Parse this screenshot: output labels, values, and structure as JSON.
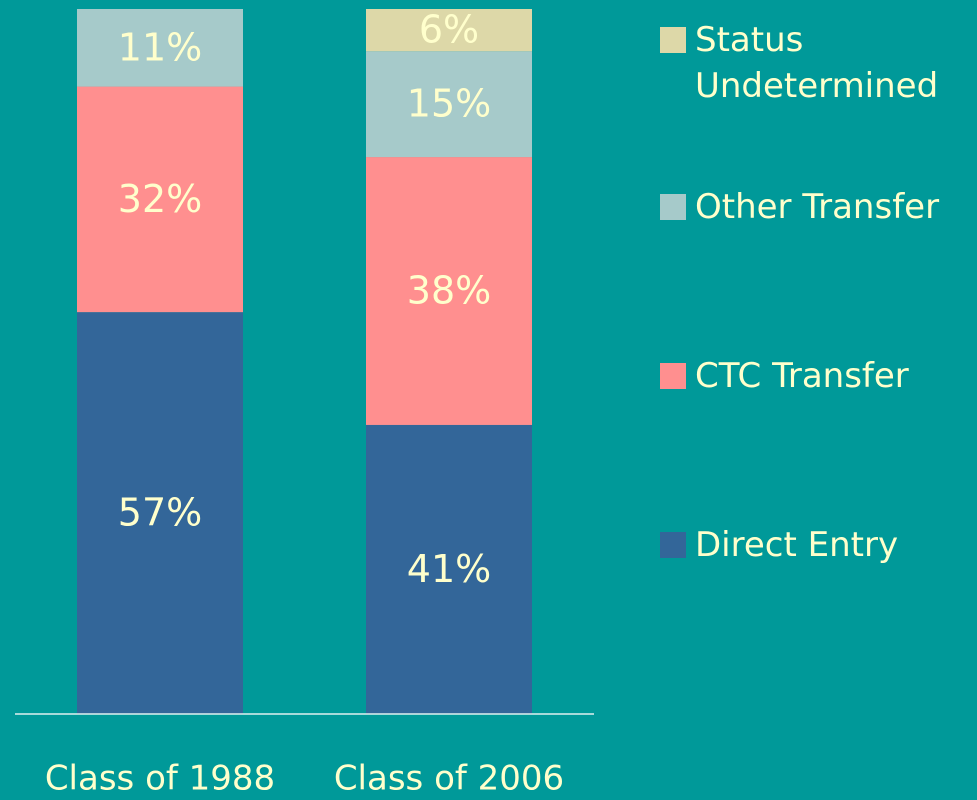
{
  "chart_data": {
    "type": "stacked_bar",
    "categories": [
      "Class of 1988",
      "Class of 2006"
    ],
    "series": [
      {
        "name": "Direct Entry",
        "color": "#336699",
        "values": [
          57,
          41
        ],
        "value_labels": [
          "57%",
          "41%"
        ]
      },
      {
        "name": "CTC Transfer",
        "color": "#ff8f8f",
        "values": [
          32,
          38
        ],
        "value_labels": [
          "32%",
          "38%"
        ]
      },
      {
        "name": "Other Transfer",
        "color": "#a6caca",
        "values": [
          11,
          15
        ],
        "value_labels": [
          "11%",
          "15%"
        ]
      },
      {
        "name": "Status Undetermined",
        "color": "#ddd8a8",
        "values": [
          null,
          6
        ],
        "value_labels": [
          null,
          "6%"
        ]
      }
    ],
    "ylim": [
      0,
      100
    ]
  }
}
